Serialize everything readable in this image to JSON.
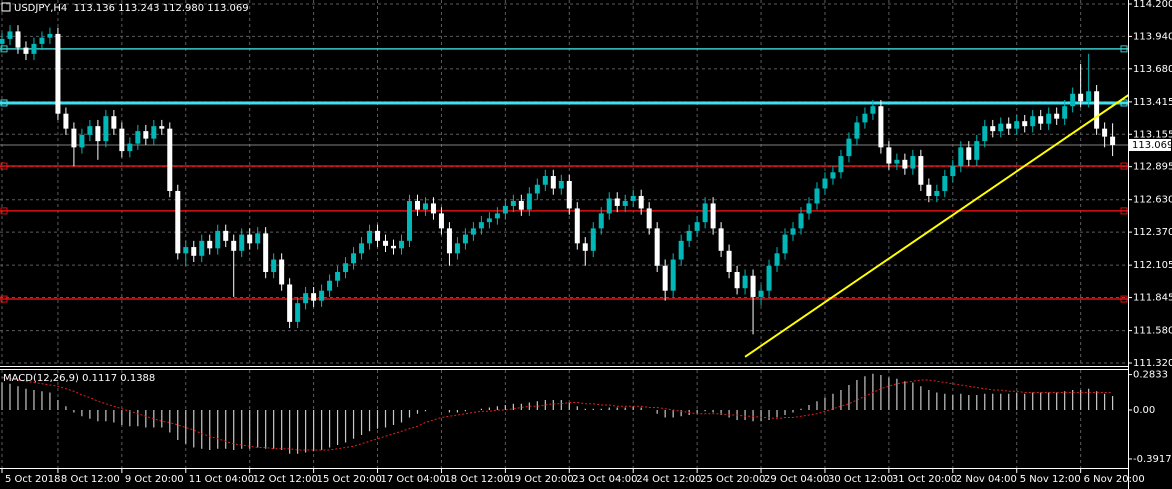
{
  "chart_data": [
    {
      "type": "candlestick",
      "title": "USDJPY,H4  113.136 113.243 112.980 113.069",
      "categories": [
        "5 Oct 2018",
        null,
        null,
        null,
        null,
        null,
        null,
        "8 Oct 12:00",
        null,
        null,
        null,
        null,
        null,
        null,
        null,
        "9 Oct 20:00",
        null,
        null,
        null,
        null,
        null,
        null,
        null,
        "11 Oct 04:00",
        null,
        null,
        null,
        null,
        null,
        null,
        null,
        "12 Oct 12:00",
        null,
        null,
        null,
        null,
        null,
        null,
        null,
        "15 Oct 20:00",
        null,
        null,
        null,
        null,
        null,
        null,
        null,
        "17 Oct 04:00",
        null,
        null,
        null,
        null,
        null,
        null,
        null,
        "18 Oct 12:00",
        null,
        null,
        null,
        null,
        null,
        null,
        null,
        "19 Oct 20:00",
        null,
        null,
        null,
        null,
        null,
        null,
        null,
        "23 Oct 04:00",
        null,
        null,
        null,
        null,
        null,
        null,
        null,
        "24 Oct 12:00",
        null,
        null,
        null,
        null,
        null,
        null,
        null,
        "25 Oct 20:00",
        null,
        null,
        null,
        null,
        null,
        null,
        null,
        "29 Oct 04:00",
        null,
        null,
        null,
        null,
        null,
        null,
        null,
        "30 Oct 12:00",
        null,
        null,
        null,
        null,
        null,
        null,
        null,
        "31 Oct 20:00",
        null,
        null,
        null,
        null,
        null,
        null,
        null,
        "2 Nov 04:00",
        null,
        null,
        null,
        null,
        null,
        null,
        null,
        "5 Nov 12:00",
        null,
        null,
        null,
        null,
        null,
        null,
        null,
        "6 Nov 20:00",
        null,
        null,
        null,
        null
      ],
      "open": [
        113.88,
        113.92,
        113.98,
        113.85,
        113.8,
        113.88,
        113.93,
        113.96,
        113.32,
        113.2,
        113.05,
        113.15,
        113.22,
        113.1,
        113.3,
        113.2,
        113.02,
        113.08,
        113.18,
        113.12,
        113.22,
        113.2,
        112.7,
        112.2,
        112.25,
        112.18,
        112.3,
        112.24,
        112.38,
        112.3,
        112.22,
        112.35,
        112.28,
        112.36,
        112.05,
        112.15,
        111.95,
        111.65,
        111.8,
        111.88,
        111.82,
        111.9,
        111.98,
        112.05,
        112.12,
        112.2,
        112.28,
        112.38,
        112.3,
        112.26,
        112.24,
        112.3,
        112.62,
        112.55,
        112.6,
        112.52,
        112.4,
        112.2,
        112.28,
        112.35,
        112.4,
        112.45,
        112.48,
        112.52,
        112.58,
        112.62,
        112.55,
        112.68,
        112.75,
        112.82,
        112.72,
        112.78,
        112.56,
        112.28,
        112.22,
        112.4,
        112.52,
        112.64,
        112.58,
        112.62,
        112.66,
        112.56,
        112.4,
        112.1,
        111.9,
        112.15,
        112.3,
        112.38,
        112.45,
        112.6,
        112.4,
        112.22,
        112.05,
        111.92,
        112.02,
        111.85,
        111.9,
        112.1,
        112.2,
        112.35,
        112.4,
        112.52,
        112.6,
        112.72,
        112.8,
        112.85,
        112.98,
        113.12,
        113.25,
        113.32,
        113.38,
        113.05,
        112.92,
        112.95,
        112.88,
        112.98,
        112.75,
        112.66,
        112.7,
        112.82,
        112.9,
        113.05,
        112.95,
        113.1,
        113.22,
        113.18,
        113.24,
        113.2,
        113.26,
        113.22,
        113.3,
        113.24,
        113.32,
        113.28,
        113.38,
        113.48,
        113.42,
        113.5,
        113.2,
        113.136
      ],
      "high": [
        113.97,
        114.03,
        114.03,
        113.9,
        113.93,
        113.98,
        114.01,
        114.01,
        113.37,
        113.25,
        113.2,
        113.27,
        113.27,
        113.35,
        113.35,
        113.25,
        113.13,
        113.23,
        113.23,
        113.27,
        113.27,
        113.25,
        112.75,
        112.3,
        112.3,
        112.35,
        112.35,
        112.43,
        112.43,
        112.35,
        112.4,
        112.4,
        112.41,
        112.41,
        112.2,
        112.2,
        112.0,
        111.85,
        111.93,
        111.93,
        111.95,
        112.03,
        112.1,
        112.17,
        112.25,
        112.33,
        112.43,
        112.43,
        112.35,
        112.31,
        112.35,
        112.67,
        112.67,
        112.65,
        112.65,
        112.57,
        112.45,
        112.33,
        112.4,
        112.45,
        112.5,
        112.53,
        112.57,
        112.63,
        112.67,
        112.67,
        112.73,
        112.8,
        112.87,
        112.87,
        112.83,
        112.83,
        112.61,
        112.33,
        112.45,
        112.57,
        112.69,
        112.69,
        112.67,
        112.71,
        112.71,
        112.61,
        112.45,
        112.15,
        112.2,
        112.35,
        112.43,
        112.5,
        112.65,
        112.65,
        112.45,
        112.27,
        112.1,
        112.07,
        112.07,
        111.95,
        112.15,
        112.25,
        112.4,
        112.45,
        112.57,
        112.65,
        112.77,
        112.85,
        112.9,
        113.03,
        113.17,
        113.3,
        113.37,
        113.43,
        113.43,
        113.1,
        113.0,
        113.0,
        113.03,
        113.03,
        112.8,
        112.75,
        112.87,
        112.95,
        113.1,
        113.1,
        113.15,
        113.27,
        113.27,
        113.29,
        113.29,
        113.31,
        113.31,
        113.35,
        113.35,
        113.37,
        113.37,
        113.43,
        113.53,
        113.72,
        113.8,
        113.55,
        113.25,
        113.243
      ],
      "low": [
        113.83,
        113.87,
        113.8,
        113.75,
        113.75,
        113.83,
        113.88,
        113.27,
        113.15,
        112.9,
        113.0,
        113.1,
        112.95,
        113.05,
        113.15,
        112.97,
        112.97,
        113.03,
        113.07,
        113.07,
        113.15,
        112.65,
        112.15,
        112.1,
        112.13,
        112.13,
        112.19,
        112.19,
        112.25,
        111.85,
        112.17,
        112.23,
        112.23,
        112.0,
        112.0,
        111.9,
        111.6,
        111.6,
        111.75,
        111.77,
        111.77,
        111.85,
        111.93,
        112.0,
        112.07,
        112.15,
        112.23,
        112.25,
        112.21,
        112.19,
        112.19,
        112.25,
        112.5,
        112.5,
        112.47,
        112.35,
        112.1,
        112.15,
        112.23,
        112.3,
        112.35,
        112.4,
        112.43,
        112.47,
        112.53,
        112.5,
        112.5,
        112.63,
        112.7,
        112.67,
        112.67,
        112.51,
        112.23,
        112.1,
        112.17,
        112.35,
        112.47,
        112.53,
        112.53,
        112.57,
        112.51,
        112.35,
        112.05,
        111.82,
        111.85,
        112.1,
        112.25,
        112.33,
        112.4,
        112.35,
        112.17,
        112.0,
        111.87,
        111.87,
        111.55,
        111.78,
        111.85,
        112.05,
        112.15,
        112.3,
        112.35,
        112.47,
        112.55,
        112.67,
        112.75,
        112.8,
        112.93,
        113.07,
        113.2,
        113.27,
        113.0,
        112.87,
        112.87,
        112.83,
        112.83,
        112.7,
        112.61,
        112.61,
        112.65,
        112.77,
        112.85,
        112.9,
        112.9,
        113.05,
        113.13,
        113.13,
        113.15,
        113.15,
        113.17,
        113.17,
        113.19,
        113.19,
        113.23,
        113.23,
        113.33,
        113.37,
        113.37,
        113.15,
        113.05,
        112.98
      ],
      "close": [
        113.92,
        113.98,
        113.85,
        113.8,
        113.88,
        113.93,
        113.96,
        113.32,
        113.2,
        113.05,
        113.15,
        113.22,
        113.1,
        113.3,
        113.2,
        113.02,
        113.08,
        113.18,
        113.12,
        113.22,
        113.2,
        112.7,
        112.2,
        112.25,
        112.18,
        112.3,
        112.24,
        112.38,
        112.3,
        112.22,
        112.35,
        112.28,
        112.36,
        112.05,
        112.15,
        111.95,
        111.65,
        111.8,
        111.88,
        111.82,
        111.9,
        111.98,
        112.05,
        112.12,
        112.2,
        112.28,
        112.38,
        112.3,
        112.26,
        112.24,
        112.3,
        112.62,
        112.55,
        112.6,
        112.52,
        112.4,
        112.2,
        112.28,
        112.35,
        112.4,
        112.45,
        112.48,
        112.52,
        112.58,
        112.62,
        112.55,
        112.68,
        112.75,
        112.82,
        112.72,
        112.78,
        112.56,
        112.28,
        112.22,
        112.4,
        112.52,
        112.64,
        112.58,
        112.62,
        112.66,
        112.56,
        112.4,
        112.1,
        111.9,
        112.15,
        112.3,
        112.38,
        112.45,
        112.6,
        112.4,
        112.22,
        112.05,
        111.92,
        112.02,
        111.85,
        111.9,
        112.1,
        112.2,
        112.35,
        112.4,
        112.52,
        112.6,
        112.72,
        112.8,
        112.85,
        112.98,
        113.12,
        113.25,
        113.32,
        113.38,
        113.05,
        112.92,
        112.95,
        112.88,
        112.98,
        112.75,
        112.66,
        112.7,
        112.82,
        112.9,
        113.05,
        112.95,
        113.1,
        113.22,
        113.18,
        113.24,
        113.2,
        113.26,
        113.22,
        113.3,
        113.24,
        113.32,
        113.28,
        113.38,
        113.48,
        113.42,
        113.5,
        113.2,
        113.136,
        113.069
      ],
      "up_color": "#00b8b8",
      "down_color": "#ffffff",
      "ylim": [
        111.32,
        114.2
      ],
      "yticks": [
        {
          "value": 114.2,
          "label": "114.200"
        },
        {
          "value": 113.94,
          "label": "113.940"
        },
        {
          "value": 113.68,
          "label": "113.680"
        },
        113.415,
        113.155,
        112.895,
        {
          "value": 112.63,
          "label": "112.630"
        },
        {
          "value": 112.37,
          "label": "112.370"
        },
        112.105,
        111.845,
        {
          "value": 111.58,
          "label": "111.580"
        },
        {
          "value": 111.32,
          "label": "111.320"
        }
      ],
      "grid": true,
      "grid_color": "#5c5c5c",
      "levels": [
        {
          "value": 113.84,
          "color": "#3cc8c8",
          "width": 1.5
        },
        {
          "value": 113.406,
          "color": "#40e0f0",
          "width": 3
        },
        {
          "value": 112.9,
          "color": "#e01010",
          "width": 1.5
        },
        {
          "value": 112.54,
          "color": "#e01010",
          "width": 1.5
        },
        {
          "value": 111.833,
          "color": "#e01010",
          "width": 1.5
        }
      ],
      "trendline": {
        "x": [
          93,
          141
        ],
        "values": [
          111.37,
          113.47
        ],
        "color": "#ffff00"
      },
      "current_price": 113.069
    },
    {
      "type": "macd",
      "title": "MACD(12,26,9) 0.1117 0.1388",
      "values": [
        0.22,
        0.21,
        0.19,
        0.17,
        0.16,
        0.15,
        0.14,
        0.08,
        0.03,
        -0.02,
        -0.05,
        -0.07,
        -0.09,
        -0.09,
        -0.1,
        -0.12,
        -0.13,
        -0.13,
        -0.14,
        -0.14,
        -0.14,
        -0.18,
        -0.24,
        -0.27,
        -0.3,
        -0.31,
        -0.32,
        -0.31,
        -0.31,
        -0.32,
        -0.31,
        -0.31,
        -0.3,
        -0.31,
        -0.31,
        -0.32,
        -0.35,
        -0.35,
        -0.34,
        -0.33,
        -0.32,
        -0.3,
        -0.28,
        -0.26,
        -0.23,
        -0.2,
        -0.17,
        -0.15,
        -0.14,
        -0.12,
        -0.1,
        -0.06,
        -0.03,
        -0.01,
        0,
        0,
        -0.02,
        -0.02,
        -0.01,
        0,
        0.01,
        0.02,
        0.03,
        0.04,
        0.05,
        0.05,
        0.06,
        0.07,
        0.08,
        0.08,
        0.08,
        0.06,
        0.03,
        0.01,
        0.01,
        0.01,
        0.02,
        0.02,
        0.02,
        0.03,
        0.02,
        0,
        -0.03,
        -0.06,
        -0.06,
        -0.05,
        -0.04,
        -0.03,
        -0.01,
        -0.02,
        -0.04,
        -0.06,
        -0.08,
        -0.08,
        -0.09,
        -0.09,
        -0.08,
        -0.06,
        -0.04,
        -0.02,
        0.01,
        0.04,
        0.07,
        0.1,
        0.13,
        0.16,
        0.2,
        0.24,
        0.27,
        0.29,
        0.28,
        0.26,
        0.25,
        0.23,
        0.22,
        0.19,
        0.16,
        0.14,
        0.13,
        0.12,
        0.13,
        0.12,
        0.12,
        0.13,
        0.13,
        0.13,
        0.13,
        0.14,
        0.13,
        0.14,
        0.14,
        0.14,
        0.14,
        0.15,
        0.16,
        0.16,
        0.17,
        0.15,
        0.13,
        0.1117
      ],
      "signal": [
        0.26,
        0.25,
        0.24,
        0.23,
        0.22,
        0.21,
        0.2,
        0.19,
        0.17,
        0.15,
        0.12,
        0.1,
        0.07,
        0.05,
        0.03,
        0.01,
        -0.01,
        -0.03,
        -0.05,
        -0.07,
        -0.09,
        -0.1,
        -0.12,
        -0.14,
        -0.16,
        -0.19,
        -0.21,
        -0.23,
        -0.25,
        -0.27,
        -0.28,
        -0.29,
        -0.3,
        -0.3,
        -0.31,
        -0.31,
        -0.31,
        -0.32,
        -0.32,
        -0.32,
        -0.32,
        -0.32,
        -0.31,
        -0.3,
        -0.29,
        -0.27,
        -0.25,
        -0.23,
        -0.21,
        -0.19,
        -0.17,
        -0.15,
        -0.13,
        -0.1,
        -0.08,
        -0.06,
        -0.05,
        -0.04,
        -0.03,
        -0.02,
        -0.01,
        -0.01,
        0,
        0,
        0.01,
        0.02,
        0.03,
        0.03,
        0.04,
        0.05,
        0.05,
        0.06,
        0.06,
        0.05,
        0.05,
        0.04,
        0.04,
        0.03,
        0.03,
        0.03,
        0.03,
        0.02,
        0.02,
        0.01,
        0,
        -0.01,
        -0.02,
        -0.03,
        -0.03,
        -0.03,
        -0.03,
        -0.04,
        -0.04,
        -0.05,
        -0.05,
        -0.06,
        -0.06,
        -0.07,
        -0.06,
        -0.06,
        -0.05,
        -0.04,
        -0.03,
        -0.01,
        0.01,
        0.03,
        0.05,
        0.08,
        0.11,
        0.14,
        0.17,
        0.19,
        0.21,
        0.22,
        0.23,
        0.24,
        0.24,
        0.23,
        0.22,
        0.21,
        0.2,
        0.19,
        0.18,
        0.17,
        0.16,
        0.16,
        0.15,
        0.15,
        0.14,
        0.14,
        0.14,
        0.14,
        0.14,
        0.14,
        0.14,
        0.14,
        0.14,
        0.14,
        0.14,
        0.1388
      ],
      "color": "#c8c8c8",
      "signal_color": "#e02020",
      "ylim": [
        -0.464,
        0.328
      ],
      "yticks": [
        0.2833,
        {
          "value": 0,
          "label": "0.00"
        },
        -0.3917
      ]
    }
  ]
}
